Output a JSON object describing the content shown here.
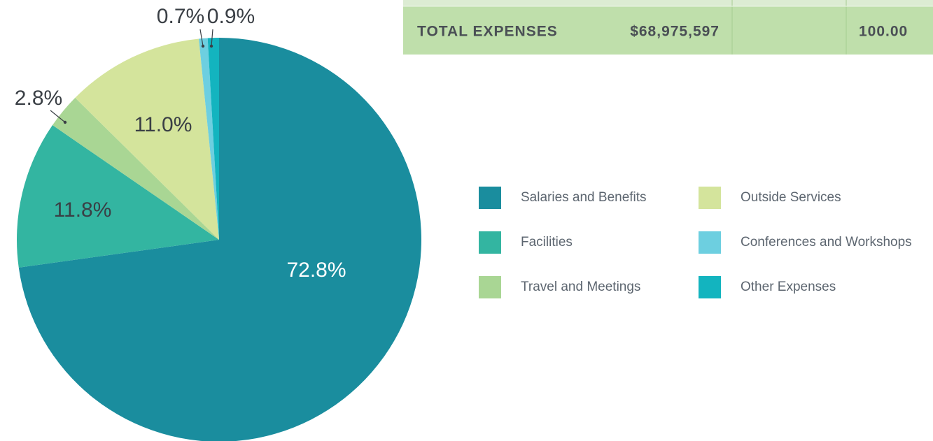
{
  "chart_data": {
    "type": "pie",
    "categories": [
      "Salaries and Benefits",
      "Facilities",
      "Travel and Meetings",
      "Outside Services",
      "Conferences and Workshops",
      "Other Expenses"
    ],
    "values": [
      72.8,
      11.8,
      2.8,
      11.0,
      0.7,
      0.9
    ],
    "value_labels": [
      "72.8%",
      "11.8%",
      "2.8%",
      "11.0%",
      "0.7%",
      "0.9%"
    ],
    "colors": [
      "#1a8d9e",
      "#33b5a1",
      "#a9d694",
      "#d4e49c",
      "#6dcfe0",
      "#13b4bf"
    ]
  },
  "table": {
    "label": "TOTAL EXPENSES",
    "amount": "$68,975,597",
    "percent": "100.00"
  }
}
